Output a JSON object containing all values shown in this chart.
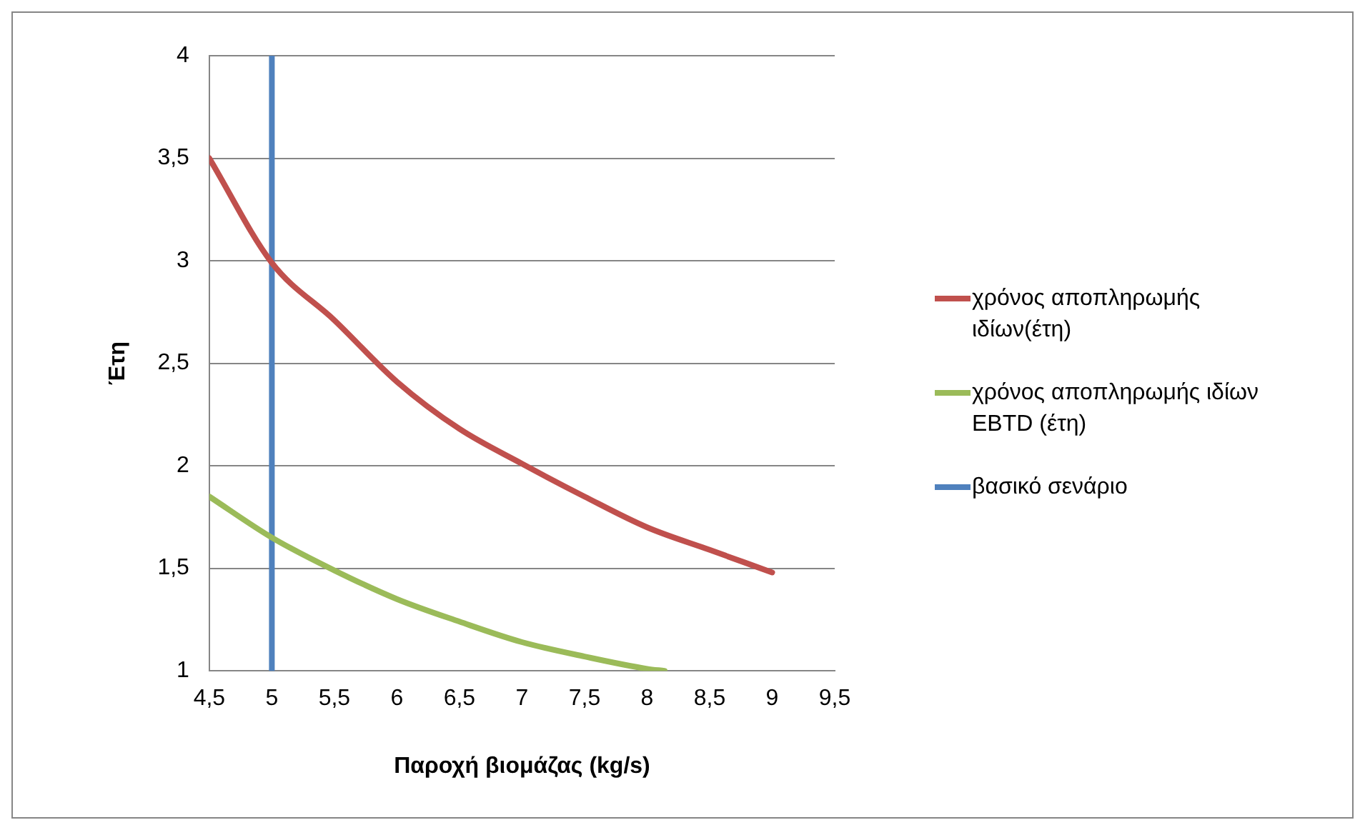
{
  "chart_data": {
    "type": "line",
    "xlabel": "Παροχή βιομάζας (kg/s)",
    "ylabel": "Έτη",
    "xlim": [
      4.5,
      9.5
    ],
    "xticks": [
      {
        "value": 4.5,
        "label": "4,5"
      },
      5,
      {
        "value": 5.5,
        "label": "5,5"
      },
      6,
      {
        "value": 6.5,
        "label": "6,5"
      },
      7,
      {
        "value": 7.5,
        "label": "7,5"
      },
      8,
      {
        "value": 8.5,
        "label": "8,5"
      },
      9,
      {
        "value": 9.5,
        "label": "9,5"
      }
    ],
    "ylim": [
      1,
      4
    ],
    "yticks": [
      1,
      {
        "value": 1.5,
        "label": "1,5"
      },
      2,
      {
        "value": 2.5,
        "label": "2,5"
      },
      3,
      {
        "value": 3.5,
        "label": "3,5"
      },
      4
    ],
    "grid": "y",
    "legend": "right",
    "marker": "none",
    "line_style": "solid",
    "series": [
      {
        "name": "χρόνος αποπληρωμής ιδίων(έτη)",
        "color": "#c0504d",
        "x": [
          4.5,
          5,
          5.5,
          6,
          6.5,
          7,
          7.5,
          8,
          8.5,
          9
        ],
        "values": [
          3.5,
          2.99,
          2.71,
          2.41,
          2.18,
          2.01,
          1.85,
          1.7,
          1.59,
          1.48
        ]
      },
      {
        "name": "χρόνος αποπληρωμής ιδίων EBTD (έτη)",
        "color": "#9bbb59",
        "x": [
          4.5,
          5,
          5.5,
          6,
          6.5,
          7,
          7.5,
          8,
          8.14
        ],
        "values": [
          1.85,
          1.65,
          1.49,
          1.35,
          1.24,
          1.14,
          1.07,
          1.01,
          1.0
        ]
      },
      {
        "name": "βασικό σενάριο",
        "color": "#4f81bd",
        "x": [
          5,
          5
        ],
        "values": [
          1,
          4
        ]
      }
    ]
  }
}
